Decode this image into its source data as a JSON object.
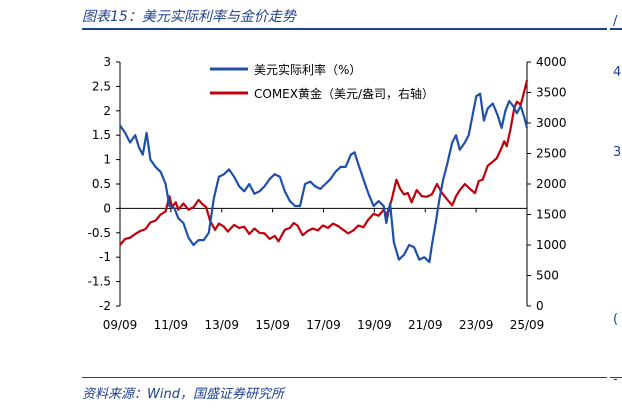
{
  "figure_title": "图表15：美元实际利率与金价走势",
  "source_text": "资料来源：Wind，国盛证券研究所",
  "right_marks": [
    "/",
    "4",
    "3",
    "(",
    "-"
  ],
  "chart_data": {
    "type": "line",
    "title": "",
    "xlabel": "",
    "ylabel": "",
    "x_ticks": [
      "09/09",
      "11/09",
      "13/09",
      "15/09",
      "17/09",
      "19/09",
      "21/09",
      "23/09",
      "25/09"
    ],
    "x_range": [
      2009.7,
      2025.75
    ],
    "left_axis": {
      "ylim": [
        -2,
        3
      ],
      "ticks": [
        -2,
        -1.5,
        -1,
        -0.5,
        0,
        0.5,
        1,
        1.5,
        2,
        2.5,
        3
      ]
    },
    "right_axis": {
      "ylim": [
        0,
        4000
      ],
      "ticks": [
        0,
        500,
        1000,
        1500,
        2000,
        2500,
        3000,
        3500,
        4000
      ]
    },
    "legend_position": "top-center",
    "series": [
      {
        "name": "美元实际利率（%）",
        "axis": "left",
        "color": "#1f4fa8",
        "points": [
          [
            2009.7,
            1.7
          ],
          [
            2009.9,
            1.55
          ],
          [
            2010.1,
            1.35
          ],
          [
            2010.3,
            1.5
          ],
          [
            2010.45,
            1.25
          ],
          [
            2010.6,
            1.1
          ],
          [
            2010.75,
            1.55
          ],
          [
            2010.9,
            1.0
          ],
          [
            2011.1,
            0.85
          ],
          [
            2011.3,
            0.75
          ],
          [
            2011.5,
            0.5
          ],
          [
            2011.65,
            0.05
          ],
          [
            2011.85,
            0.0
          ],
          [
            2012.0,
            -0.2
          ],
          [
            2012.2,
            -0.3
          ],
          [
            2012.4,
            -0.6
          ],
          [
            2012.6,
            -0.75
          ],
          [
            2012.8,
            -0.65
          ],
          [
            2013.0,
            -0.65
          ],
          [
            2013.2,
            -0.5
          ],
          [
            2013.4,
            0.2
          ],
          [
            2013.6,
            0.65
          ],
          [
            2013.8,
            0.7
          ],
          [
            2014.0,
            0.8
          ],
          [
            2014.2,
            0.65
          ],
          [
            2014.4,
            0.45
          ],
          [
            2014.6,
            0.35
          ],
          [
            2014.8,
            0.5
          ],
          [
            2015.0,
            0.3
          ],
          [
            2015.2,
            0.35
          ],
          [
            2015.4,
            0.45
          ],
          [
            2015.6,
            0.6
          ],
          [
            2015.8,
            0.7
          ],
          [
            2016.0,
            0.65
          ],
          [
            2016.2,
            0.35
          ],
          [
            2016.4,
            0.15
          ],
          [
            2016.6,
            0.05
          ],
          [
            2016.8,
            0.05
          ],
          [
            2017.0,
            0.5
          ],
          [
            2017.2,
            0.55
          ],
          [
            2017.4,
            0.45
          ],
          [
            2017.6,
            0.4
          ],
          [
            2017.8,
            0.5
          ],
          [
            2018.0,
            0.6
          ],
          [
            2018.2,
            0.75
          ],
          [
            2018.4,
            0.85
          ],
          [
            2018.6,
            0.85
          ],
          [
            2018.8,
            1.1
          ],
          [
            2018.95,
            1.15
          ],
          [
            2019.1,
            0.9
          ],
          [
            2019.3,
            0.6
          ],
          [
            2019.5,
            0.3
          ],
          [
            2019.7,
            0.05
          ],
          [
            2019.9,
            0.15
          ],
          [
            2020.1,
            0.05
          ],
          [
            2020.2,
            -0.3
          ],
          [
            2020.35,
            0.1
          ],
          [
            2020.5,
            -0.7
          ],
          [
            2020.7,
            -1.05
          ],
          [
            2020.9,
            -0.95
          ],
          [
            2021.1,
            -0.75
          ],
          [
            2021.3,
            -0.8
          ],
          [
            2021.5,
            -1.05
          ],
          [
            2021.7,
            -1.0
          ],
          [
            2021.9,
            -1.1
          ],
          [
            2022.0,
            -0.75
          ],
          [
            2022.15,
            -0.3
          ],
          [
            2022.3,
            0.2
          ],
          [
            2022.45,
            0.6
          ],
          [
            2022.6,
            0.9
          ],
          [
            2022.8,
            1.35
          ],
          [
            2022.95,
            1.5
          ],
          [
            2023.1,
            1.2
          ],
          [
            2023.3,
            1.35
          ],
          [
            2023.45,
            1.5
          ],
          [
            2023.6,
            1.9
          ],
          [
            2023.75,
            2.3
          ],
          [
            2023.9,
            2.35
          ],
          [
            2024.05,
            1.8
          ],
          [
            2024.2,
            2.05
          ],
          [
            2024.4,
            2.15
          ],
          [
            2024.6,
            1.9
          ],
          [
            2024.75,
            1.65
          ],
          [
            2024.9,
            2.0
          ],
          [
            2025.05,
            2.2
          ],
          [
            2025.2,
            2.1
          ],
          [
            2025.35,
            1.95
          ],
          [
            2025.5,
            2.1
          ],
          [
            2025.65,
            1.85
          ],
          [
            2025.75,
            1.65
          ]
        ]
      },
      {
        "name": "COMEX黄金（美元/盎司，右轴）",
        "axis": "right",
        "color": "#c0000b",
        "points": [
          [
            2009.7,
            1000
          ],
          [
            2009.9,
            1100
          ],
          [
            2010.1,
            1120
          ],
          [
            2010.3,
            1180
          ],
          [
            2010.5,
            1230
          ],
          [
            2010.7,
            1260
          ],
          [
            2010.9,
            1370
          ],
          [
            2011.1,
            1400
          ],
          [
            2011.3,
            1500
          ],
          [
            2011.5,
            1550
          ],
          [
            2011.65,
            1800
          ],
          [
            2011.75,
            1620
          ],
          [
            2011.9,
            1700
          ],
          [
            2012.0,
            1580
          ],
          [
            2012.2,
            1680
          ],
          [
            2012.4,
            1580
          ],
          [
            2012.6,
            1620
          ],
          [
            2012.8,
            1740
          ],
          [
            2012.95,
            1670
          ],
          [
            2013.1,
            1620
          ],
          [
            2013.25,
            1400
          ],
          [
            2013.45,
            1250
          ],
          [
            2013.6,
            1350
          ],
          [
            2013.8,
            1300
          ],
          [
            2013.95,
            1220
          ],
          [
            2014.2,
            1330
          ],
          [
            2014.4,
            1280
          ],
          [
            2014.6,
            1300
          ],
          [
            2014.8,
            1180
          ],
          [
            2015.0,
            1270
          ],
          [
            2015.2,
            1200
          ],
          [
            2015.4,
            1190
          ],
          [
            2015.6,
            1100
          ],
          [
            2015.8,
            1150
          ],
          [
            2015.95,
            1060
          ],
          [
            2016.2,
            1250
          ],
          [
            2016.4,
            1280
          ],
          [
            2016.55,
            1360
          ],
          [
            2016.7,
            1320
          ],
          [
            2016.9,
            1160
          ],
          [
            2017.1,
            1230
          ],
          [
            2017.3,
            1270
          ],
          [
            2017.5,
            1240
          ],
          [
            2017.7,
            1320
          ],
          [
            2017.9,
            1280
          ],
          [
            2018.1,
            1350
          ],
          [
            2018.3,
            1310
          ],
          [
            2018.5,
            1250
          ],
          [
            2018.7,
            1190
          ],
          [
            2018.9,
            1240
          ],
          [
            2019.1,
            1320
          ],
          [
            2019.3,
            1290
          ],
          [
            2019.5,
            1420
          ],
          [
            2019.7,
            1510
          ],
          [
            2019.9,
            1480
          ],
          [
            2020.1,
            1580
          ],
          [
            2020.2,
            1480
          ],
          [
            2020.4,
            1720
          ],
          [
            2020.6,
            2070
          ],
          [
            2020.75,
            1920
          ],
          [
            2020.9,
            1830
          ],
          [
            2021.05,
            1850
          ],
          [
            2021.2,
            1700
          ],
          [
            2021.4,
            1900
          ],
          [
            2021.6,
            1800
          ],
          [
            2021.8,
            1790
          ],
          [
            2022.0,
            1830
          ],
          [
            2022.2,
            2000
          ],
          [
            2022.4,
            1850
          ],
          [
            2022.6,
            1750
          ],
          [
            2022.8,
            1650
          ],
          [
            2022.95,
            1800
          ],
          [
            2023.1,
            1900
          ],
          [
            2023.3,
            2000
          ],
          [
            2023.5,
            1920
          ],
          [
            2023.7,
            1850
          ],
          [
            2023.85,
            2050
          ],
          [
            2024.0,
            2070
          ],
          [
            2024.2,
            2300
          ],
          [
            2024.35,
            2350
          ],
          [
            2024.55,
            2420
          ],
          [
            2024.7,
            2550
          ],
          [
            2024.85,
            2700
          ],
          [
            2024.95,
            2620
          ],
          [
            2025.1,
            2900
          ],
          [
            2025.25,
            3250
          ],
          [
            2025.35,
            3350
          ],
          [
            2025.5,
            3300
          ],
          [
            2025.6,
            3450
          ],
          [
            2025.75,
            3700
          ]
        ]
      }
    ]
  }
}
